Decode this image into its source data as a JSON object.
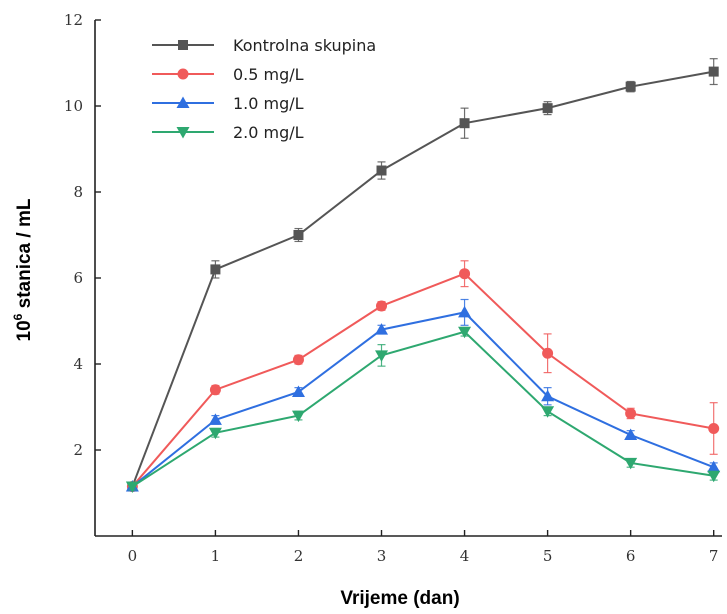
{
  "chart_data": {
    "type": "line",
    "title": "",
    "xlabel": "Vrijeme (dan)",
    "ylabel_base": "10",
    "ylabel_exp": "6",
    "ylabel_rest": " stanica / mL",
    "x": [
      0,
      1,
      2,
      3,
      4,
      5,
      6,
      7
    ],
    "x_tick_labels": [
      "0",
      "1",
      "2",
      "3",
      "4",
      "5",
      "6",
      "7"
    ],
    "xlim": [
      -0.45,
      7.1
    ],
    "ylim": [
      0,
      12
    ],
    "y_ticks": [
      2,
      4,
      6,
      8,
      10,
      12
    ],
    "y_tick_labels": [
      "2",
      "4",
      "6",
      "8",
      "10",
      "12"
    ],
    "grid": false,
    "legend_position": "top-left",
    "series": [
      {
        "name": "Kontrolna skupina",
        "color": "#555555",
        "marker": "square",
        "values": [
          1.15,
          6.2,
          7.0,
          8.5,
          9.6,
          9.95,
          10.45,
          10.8
        ],
        "errors": [
          0.1,
          0.2,
          0.15,
          0.2,
          0.35,
          0.15,
          0.12,
          0.3
        ]
      },
      {
        "name": "0.5 mg/L",
        "color": "#f05a5a",
        "marker": "circle",
        "values": [
          1.15,
          3.4,
          4.1,
          5.35,
          6.1,
          4.25,
          2.85,
          2.5
        ],
        "errors": [
          0.08,
          0.1,
          0.1,
          0.1,
          0.3,
          0.45,
          0.12,
          0.6
        ]
      },
      {
        "name": "1.0 mg/L",
        "color": "#2f6fe0",
        "marker": "triangle-up",
        "values": [
          1.15,
          2.7,
          3.35,
          4.8,
          5.2,
          3.25,
          2.35,
          1.6
        ],
        "errors": [
          0.08,
          0.1,
          0.1,
          0.1,
          0.3,
          0.2,
          0.1,
          0.1
        ]
      },
      {
        "name": "2.0 mg/L",
        "color": "#2ea870",
        "marker": "triangle-down",
        "values": [
          1.15,
          2.4,
          2.8,
          4.2,
          4.75,
          2.9,
          1.7,
          1.4
        ],
        "errors": [
          0.08,
          0.1,
          0.1,
          0.25,
          0.1,
          0.1,
          0.1,
          0.1
        ]
      }
    ]
  }
}
